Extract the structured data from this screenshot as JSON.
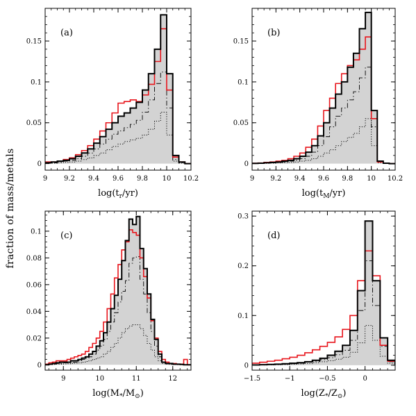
{
  "y_title": "fraction of mass/metals",
  "chart_data": [
    {
      "type": "histogram",
      "panel_label": "(a)",
      "xlabel_main": "log(t",
      "xlabel_sub": "r",
      "xlabel_tail": "/yr)",
      "xlim": [
        9.0,
        10.2
      ],
      "ylim": [
        -0.008,
        0.19
      ],
      "xticks": [
        9,
        9.2,
        9.4,
        9.6,
        9.8,
        10,
        10.2
      ],
      "xtick_labels": [
        "9",
        "9.2",
        "9.4",
        "9.6",
        "9.8",
        "10",
        "10.2"
      ],
      "yticks": [
        0,
        0.05,
        0.1,
        0.15
      ],
      "ytick_labels": [
        "0",
        "0.05",
        "0.1",
        "0.15"
      ],
      "bin_edges": [
        9.0,
        9.05,
        9.1,
        9.15,
        9.2,
        9.25,
        9.3,
        9.35,
        9.4,
        9.45,
        9.5,
        9.55,
        9.6,
        9.65,
        9.7,
        9.75,
        9.8,
        9.85,
        9.9,
        9.95,
        10.0,
        10.05,
        10.1,
        10.15,
        10.2
      ],
      "series": [
        {
          "style": "black-filled",
          "values": [
            0.001,
            0.002,
            0.003,
            0.004,
            0.006,
            0.009,
            0.013,
            0.018,
            0.025,
            0.033,
            0.042,
            0.05,
            0.058,
            0.062,
            0.068,
            0.075,
            0.09,
            0.11,
            0.14,
            0.182,
            0.11,
            0.01,
            0.002,
            0.0,
            0.0
          ]
        },
        {
          "style": "red",
          "values": [
            0.002,
            0.002,
            0.003,
            0.005,
            0.007,
            0.011,
            0.016,
            0.022,
            0.03,
            0.04,
            0.05,
            0.062,
            0.074,
            0.076,
            0.078,
            0.076,
            0.084,
            0.097,
            0.125,
            0.165,
            0.09,
            0.008,
            0.002,
            0.0,
            0.0
          ]
        },
        {
          "style": "dashdot",
          "values": [
            0.0005,
            0.001,
            0.002,
            0.003,
            0.004,
            0.006,
            0.009,
            0.013,
            0.018,
            0.024,
            0.03,
            0.036,
            0.04,
            0.044,
            0.048,
            0.053,
            0.063,
            0.078,
            0.098,
            0.112,
            0.068,
            0.005,
            0.001,
            0.0,
            0.0
          ]
        },
        {
          "style": "dotted",
          "values": [
            0.0003,
            0.0005,
            0.001,
            0.0015,
            0.002,
            0.003,
            0.005,
            0.007,
            0.01,
            0.013,
            0.017,
            0.021,
            0.024,
            0.027,
            0.029,
            0.031,
            0.035,
            0.042,
            0.052,
            0.063,
            0.035,
            0.003,
            0.0005,
            0.0,
            0.0
          ]
        }
      ]
    },
    {
      "type": "histogram",
      "panel_label": "(b)",
      "xlabel_main": "log(t",
      "xlabel_sub": "M",
      "xlabel_tail": "/yr)",
      "xlim": [
        9.0,
        10.2
      ],
      "ylim": [
        -0.008,
        0.19
      ],
      "xticks": [
        9,
        9.2,
        9.4,
        9.6,
        9.8,
        10,
        10.2
      ],
      "xtick_labels": [
        "9",
        "9.2",
        "9.4",
        "9.6",
        "9.8",
        "10",
        "10.2"
      ],
      "yticks": [
        0,
        0.05,
        0.1,
        0.15
      ],
      "ytick_labels": [
        "0",
        "0.05",
        "0.1",
        "0.15"
      ],
      "bin_edges": [
        9.0,
        9.05,
        9.1,
        9.15,
        9.2,
        9.25,
        9.3,
        9.35,
        9.4,
        9.45,
        9.5,
        9.55,
        9.6,
        9.65,
        9.7,
        9.75,
        9.8,
        9.85,
        9.9,
        9.95,
        10.0,
        10.05,
        10.1,
        10.15,
        10.2
      ],
      "series": [
        {
          "style": "black-filled",
          "values": [
            0.0003,
            0.0005,
            0.001,
            0.0015,
            0.002,
            0.003,
            0.004,
            0.006,
            0.009,
            0.014,
            0.022,
            0.034,
            0.05,
            0.068,
            0.085,
            0.1,
            0.118,
            0.135,
            0.165,
            0.185,
            0.065,
            0.003,
            0.0005,
            0.0,
            0.0
          ]
        },
        {
          "style": "red",
          "values": [
            0.0005,
            0.0008,
            0.0015,
            0.002,
            0.003,
            0.004,
            0.006,
            0.009,
            0.013,
            0.02,
            0.03,
            0.046,
            0.065,
            0.08,
            0.098,
            0.11,
            0.12,
            0.127,
            0.14,
            0.155,
            0.055,
            0.002,
            0.0004,
            0.0,
            0.0
          ]
        },
        {
          "style": "dashdot",
          "values": [
            0.0002,
            0.0003,
            0.0006,
            0.001,
            0.0015,
            0.002,
            0.003,
            0.004,
            0.006,
            0.009,
            0.014,
            0.022,
            0.033,
            0.045,
            0.058,
            0.068,
            0.078,
            0.088,
            0.105,
            0.118,
            0.045,
            0.002,
            0.0003,
            0.0,
            0.0
          ]
        },
        {
          "style": "dotted",
          "values": [
            0.0001,
            0.0002,
            0.0003,
            0.0005,
            0.0008,
            0.001,
            0.0015,
            0.002,
            0.003,
            0.004,
            0.006,
            0.009,
            0.013,
            0.017,
            0.022,
            0.027,
            0.032,
            0.037,
            0.045,
            0.055,
            0.022,
            0.001,
            0.0002,
            0.0,
            0.0
          ]
        }
      ]
    },
    {
      "type": "histogram",
      "panel_label": "(c)",
      "xlabel_main": "log(M",
      "xlabel_sub": "*",
      "xlabel_mid": "/M",
      "xlabel_sub2": "⊙",
      "xlabel_tail": ")",
      "xlim": [
        8.5,
        12.5
      ],
      "ylim": [
        -0.004,
        0.115
      ],
      "xticks": [
        9,
        10,
        11,
        12
      ],
      "xtick_labels": [
        "9",
        "10",
        "11",
        "12"
      ],
      "minor_step": 0.2,
      "yticks": [
        0,
        0.02,
        0.04,
        0.06,
        0.08,
        0.1
      ],
      "ytick_labels": [
        "0",
        "0.02",
        "0.04",
        "0.06",
        "0.08",
        "0.1"
      ],
      "bin_edges": [
        8.5,
        8.6,
        8.7,
        8.8,
        8.9,
        9.0,
        9.1,
        9.2,
        9.3,
        9.4,
        9.5,
        9.6,
        9.7,
        9.8,
        9.9,
        10.0,
        10.1,
        10.2,
        10.3,
        10.4,
        10.5,
        10.6,
        10.7,
        10.8,
        10.9,
        11.0,
        11.1,
        11.2,
        11.3,
        11.4,
        11.5,
        11.6,
        11.7,
        11.8,
        11.9,
        12.0,
        12.1,
        12.2,
        12.3,
        12.4,
        12.5
      ],
      "series": [
        {
          "style": "black-filled",
          "values": [
            0.0,
            0.0005,
            0.001,
            0.0015,
            0.002,
            0.002,
            0.002,
            0.003,
            0.003,
            0.004,
            0.005,
            0.006,
            0.008,
            0.01,
            0.014,
            0.018,
            0.024,
            0.032,
            0.042,
            0.052,
            0.064,
            0.078,
            0.093,
            0.109,
            0.105,
            0.111,
            0.087,
            0.072,
            0.053,
            0.034,
            0.019,
            0.008,
            0.002,
            0.001,
            0.001,
            0.0005,
            0.0005,
            0.0003,
            0.0,
            0.0
          ]
        },
        {
          "style": "red",
          "values": [
            0.0005,
            0.0015,
            0.002,
            0.003,
            0.003,
            0.003,
            0.004,
            0.005,
            0.006,
            0.007,
            0.008,
            0.01,
            0.013,
            0.016,
            0.02,
            0.025,
            0.032,
            0.042,
            0.053,
            0.065,
            0.075,
            0.086,
            0.092,
            0.101,
            0.099,
            0.097,
            0.08,
            0.066,
            0.05,
            0.033,
            0.02,
            0.01,
            0.004,
            0.002,
            0.001,
            0.001,
            0.0005,
            0.0005,
            0.004,
            0.0
          ]
        },
        {
          "style": "dashdot",
          "values": [
            0.0,
            0.0003,
            0.0005,
            0.001,
            0.001,
            0.0015,
            0.0015,
            0.002,
            0.002,
            0.003,
            0.004,
            0.005,
            0.006,
            0.008,
            0.011,
            0.014,
            0.019,
            0.025,
            0.032,
            0.039,
            0.047,
            0.055,
            0.063,
            0.076,
            0.08,
            0.081,
            0.064,
            0.053,
            0.039,
            0.025,
            0.014,
            0.006,
            0.002,
            0.001,
            0.0005,
            0.0003,
            0.0003,
            0.0002,
            0.0,
            0.0
          ]
        },
        {
          "style": "dotted",
          "values": [
            0.0,
            0.0002,
            0.0003,
            0.0005,
            0.0005,
            0.0007,
            0.0008,
            0.001,
            0.0012,
            0.0015,
            0.002,
            0.0025,
            0.003,
            0.004,
            0.005,
            0.006,
            0.008,
            0.01,
            0.013,
            0.016,
            0.02,
            0.024,
            0.027,
            0.029,
            0.03,
            0.03,
            0.027,
            0.022,
            0.016,
            0.011,
            0.006,
            0.003,
            0.001,
            0.0005,
            0.0003,
            0.0002,
            0.0,
            0.0,
            0.0,
            0.0
          ]
        }
      ]
    },
    {
      "type": "histogram",
      "panel_label": "(d)",
      "xlabel_main": "log(Z",
      "xlabel_sub": "*",
      "xlabel_mid": "/Z",
      "xlabel_sub2": "⊙",
      "xlabel_tail": ")",
      "xlim": [
        -1.5,
        0.4
      ],
      "ylim": [
        -0.01,
        0.31
      ],
      "xticks": [
        -1.5,
        -1,
        -0.5,
        0
      ],
      "xtick_labels": [
        "−1.5",
        "−1",
        "−0.5",
        "0"
      ],
      "minor_step": 0.1,
      "yticks": [
        0,
        0.1,
        0.2,
        0.3
      ],
      "ytick_labels": [
        "0",
        "0.1",
        "0.2",
        "0.3"
      ],
      "bin_edges": [
        -1.5,
        -1.4,
        -1.3,
        -1.2,
        -1.1,
        -1.0,
        -0.9,
        -0.8,
        -0.7,
        -0.6,
        -0.5,
        -0.4,
        -0.3,
        -0.2,
        -0.1,
        0.0,
        0.1,
        0.2,
        0.3,
        0.4
      ],
      "series": [
        {
          "style": "black-filled",
          "values": [
            0.0005,
            0.001,
            0.0015,
            0.002,
            0.003,
            0.004,
            0.005,
            0.007,
            0.01,
            0.014,
            0.02,
            0.028,
            0.04,
            0.07,
            0.15,
            0.29,
            0.17,
            0.055,
            0.01
          ]
        },
        {
          "style": "red",
          "values": [
            0.004,
            0.006,
            0.008,
            0.01,
            0.013,
            0.016,
            0.02,
            0.025,
            0.031,
            0.038,
            0.046,
            0.057,
            0.072,
            0.1,
            0.17,
            0.23,
            0.18,
            0.04,
            0.008
          ]
        },
        {
          "style": "dashdot",
          "values": [
            0.0003,
            0.0006,
            0.001,
            0.0015,
            0.002,
            0.003,
            0.004,
            0.006,
            0.008,
            0.011,
            0.015,
            0.021,
            0.03,
            0.05,
            0.11,
            0.21,
            0.12,
            0.038,
            0.007
          ]
        },
        {
          "style": "dotted",
          "values": [
            0.0002,
            0.0003,
            0.0005,
            0.0008,
            0.0012,
            0.0018,
            0.0025,
            0.0035,
            0.005,
            0.007,
            0.009,
            0.012,
            0.016,
            0.026,
            0.045,
            0.08,
            0.05,
            0.018,
            0.004
          ]
        }
      ]
    }
  ]
}
